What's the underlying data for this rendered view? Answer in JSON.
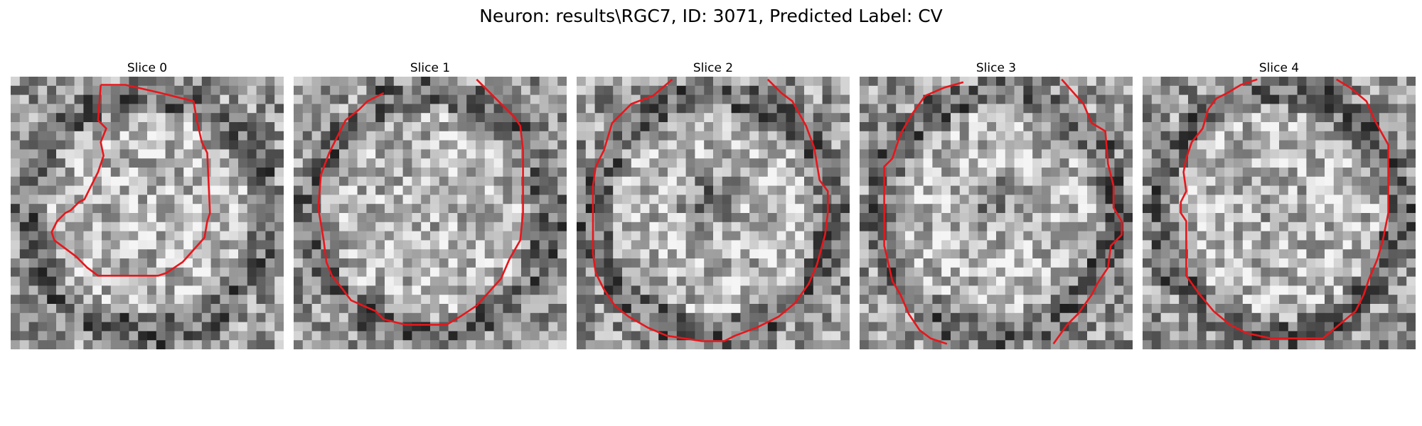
{
  "figure": {
    "title": "Neuron: results\\RGC7, ID: 3071, Predicted Label: CV"
  },
  "slices": [
    {
      "label": "Slice 0",
      "seed": 11,
      "dark_center": 0.0,
      "contour": [
        [
          0.33,
          0.03
        ],
        [
          0.42,
          0.03
        ],
        [
          0.55,
          0.06
        ],
        [
          0.67,
          0.09
        ],
        [
          0.68,
          0.15
        ],
        [
          0.7,
          0.24
        ],
        [
          0.72,
          0.28
        ],
        [
          0.73,
          0.5
        ],
        [
          0.72,
          0.53
        ],
        [
          0.71,
          0.59
        ],
        [
          0.63,
          0.68
        ],
        [
          0.57,
          0.72
        ],
        [
          0.54,
          0.73
        ],
        [
          0.32,
          0.73
        ],
        [
          0.28,
          0.7
        ],
        [
          0.24,
          0.66
        ],
        [
          0.16,
          0.6
        ],
        [
          0.15,
          0.57
        ],
        [
          0.17,
          0.53
        ],
        [
          0.2,
          0.5
        ],
        [
          0.22,
          0.49
        ],
        [
          0.25,
          0.46
        ],
        [
          0.27,
          0.45
        ],
        [
          0.32,
          0.35
        ],
        [
          0.34,
          0.29
        ],
        [
          0.33,
          0.24
        ],
        [
          0.35,
          0.19
        ],
        [
          0.32,
          0.16
        ],
        [
          0.33,
          0.03
        ]
      ]
    },
    {
      "label": "Slice 1",
      "seed": 23,
      "dark_center": 0.1,
      "contour": [
        [
          0.33,
          0.06
        ],
        [
          0.27,
          0.09
        ],
        [
          0.24,
          0.12
        ],
        [
          0.19,
          0.16
        ],
        [
          0.16,
          0.22
        ],
        [
          0.13,
          0.28
        ],
        [
          0.1,
          0.36
        ],
        [
          0.09,
          0.48
        ],
        [
          0.11,
          0.6
        ],
        [
          0.12,
          0.68
        ],
        [
          0.14,
          0.73
        ],
        [
          0.18,
          0.78
        ],
        [
          0.21,
          0.82
        ],
        [
          0.3,
          0.86
        ],
        [
          0.33,
          0.89
        ],
        [
          0.41,
          0.91
        ],
        [
          0.56,
          0.91
        ],
        [
          0.61,
          0.88
        ],
        [
          0.67,
          0.84
        ],
        [
          0.76,
          0.74
        ],
        [
          0.79,
          0.67
        ],
        [
          0.83,
          0.6
        ],
        [
          0.84,
          0.5
        ],
        [
          0.84,
          0.27
        ],
        [
          0.83,
          0.18
        ],
        [
          0.81,
          0.15
        ],
        [
          0.67,
          0.01
        ]
      ]
    },
    {
      "label": "Slice 2",
      "seed": 37,
      "dark_center": 0.8,
      "contour": [
        [
          0.35,
          0.01
        ],
        [
          0.28,
          0.07
        ],
        [
          0.2,
          0.1
        ],
        [
          0.13,
          0.17
        ],
        [
          0.1,
          0.27
        ],
        [
          0.07,
          0.33
        ],
        [
          0.06,
          0.4
        ],
        [
          0.06,
          0.65
        ],
        [
          0.07,
          0.72
        ],
        [
          0.1,
          0.78
        ],
        [
          0.14,
          0.84
        ],
        [
          0.19,
          0.88
        ],
        [
          0.26,
          0.92
        ],
        [
          0.33,
          0.95
        ],
        [
          0.46,
          0.97
        ],
        [
          0.54,
          0.97
        ],
        [
          0.58,
          0.95
        ],
        [
          0.66,
          0.92
        ],
        [
          0.74,
          0.88
        ],
        [
          0.8,
          0.83
        ],
        [
          0.85,
          0.76
        ],
        [
          0.88,
          0.69
        ],
        [
          0.91,
          0.58
        ],
        [
          0.92,
          0.5
        ],
        [
          0.92,
          0.42
        ],
        [
          0.89,
          0.38
        ],
        [
          0.87,
          0.26
        ],
        [
          0.84,
          0.18
        ],
        [
          0.79,
          0.09
        ],
        [
          0.75,
          0.06
        ],
        [
          0.7,
          0.01
        ]
      ]
    },
    {
      "label": "Slice 3",
      "seed": 51,
      "dark_center": 0.55,
      "contour_a": [
        [
          0.38,
          0.02
        ],
        [
          0.31,
          0.04
        ],
        [
          0.24,
          0.07
        ],
        [
          0.19,
          0.14
        ],
        [
          0.15,
          0.21
        ],
        [
          0.12,
          0.3
        ],
        [
          0.09,
          0.33
        ],
        [
          0.09,
          0.62
        ],
        [
          0.1,
          0.66
        ],
        [
          0.12,
          0.75
        ],
        [
          0.15,
          0.8
        ],
        [
          0.18,
          0.87
        ],
        [
          0.22,
          0.93
        ],
        [
          0.26,
          0.96
        ],
        [
          0.32,
          0.98
        ]
      ],
      "contour_b": [
        [
          0.74,
          0.01
        ],
        [
          0.82,
          0.1
        ],
        [
          0.85,
          0.17
        ],
        [
          0.9,
          0.2
        ],
        [
          0.91,
          0.32
        ],
        [
          0.93,
          0.4
        ],
        [
          0.93,
          0.48
        ],
        [
          0.96,
          0.53
        ],
        [
          0.96,
          0.58
        ],
        [
          0.92,
          0.62
        ],
        [
          0.91,
          0.7
        ],
        [
          0.87,
          0.76
        ],
        [
          0.85,
          0.8
        ],
        [
          0.8,
          0.87
        ],
        [
          0.76,
          0.91
        ],
        [
          0.71,
          0.98
        ]
      ]
    },
    {
      "label": "Slice 4",
      "seed": 67,
      "dark_center": 0.25,
      "contour": [
        [
          0.42,
          0.01
        ],
        [
          0.36,
          0.03
        ],
        [
          0.31,
          0.06
        ],
        [
          0.27,
          0.08
        ],
        [
          0.24,
          0.12
        ],
        [
          0.22,
          0.19
        ],
        [
          0.18,
          0.24
        ],
        [
          0.16,
          0.3
        ],
        [
          0.15,
          0.35
        ],
        [
          0.16,
          0.42
        ],
        [
          0.14,
          0.46
        ],
        [
          0.14,
          0.5
        ],
        [
          0.16,
          0.53
        ],
        [
          0.16,
          0.73
        ],
        [
          0.21,
          0.8
        ],
        [
          0.26,
          0.86
        ],
        [
          0.32,
          0.91
        ],
        [
          0.38,
          0.94
        ],
        [
          0.47,
          0.96
        ],
        [
          0.66,
          0.96
        ],
        [
          0.72,
          0.91
        ],
        [
          0.78,
          0.86
        ],
        [
          0.81,
          0.8
        ],
        [
          0.83,
          0.74
        ],
        [
          0.86,
          0.67
        ],
        [
          0.88,
          0.6
        ],
        [
          0.9,
          0.5
        ],
        [
          0.9,
          0.25
        ],
        [
          0.85,
          0.16
        ],
        [
          0.82,
          0.09
        ],
        [
          0.76,
          0.04
        ],
        [
          0.71,
          0.01
        ]
      ]
    }
  ],
  "colors": {
    "contour": "#e8161b",
    "background": "#ffffff"
  }
}
